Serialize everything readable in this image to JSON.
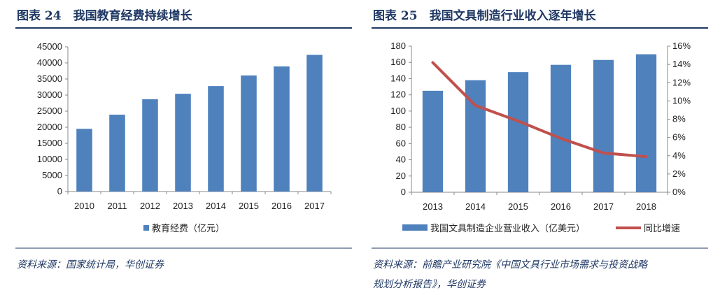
{
  "chart_data": [
    {
      "type": "bar",
      "title": "图表 24　我国教育经费持续增长",
      "categories": [
        "2010",
        "2011",
        "2012",
        "2013",
        "2014",
        "2015",
        "2016",
        "2017"
      ],
      "series": [
        {
          "name": "教育经费（亿元）",
          "values": [
            19500,
            23900,
            28700,
            30400,
            32800,
            36100,
            38900,
            42500
          ],
          "color": "#4f81bd"
        }
      ],
      "ylim": [
        0,
        45000
      ],
      "yticks": [
        "0",
        "5000",
        "10000",
        "15000",
        "20000",
        "25000",
        "30000",
        "35000",
        "40000",
        "45000"
      ],
      "grid": false,
      "legend": "bottom",
      "source": "资料来源：国家统计局，华创证券"
    },
    {
      "type": "bar+line",
      "title": "图表 25　我国文具制造行业收入逐年增长",
      "categories": [
        "2013",
        "2014",
        "2015",
        "2016",
        "2017",
        "2018"
      ],
      "series": [
        {
          "name": "我国文具制造企业营业收入（亿美元）",
          "type": "bar",
          "axis": "left",
          "values": [
            125,
            138,
            148,
            157,
            163,
            170
          ],
          "color": "#4f81bd"
        },
        {
          "name": "同比增速",
          "type": "line",
          "axis": "right",
          "values": [
            14.2,
            9.5,
            7.8,
            5.9,
            4.3,
            3.9
          ],
          "color": "#c0504d"
        }
      ],
      "ylim": [
        0,
        180
      ],
      "yticks": [
        "0",
        "20",
        "40",
        "60",
        "80",
        "100",
        "120",
        "140",
        "160",
        "180"
      ],
      "y2lim": [
        0,
        16
      ],
      "y2ticks": [
        "0%",
        "2%",
        "4%",
        "6%",
        "8%",
        "10%",
        "12%",
        "14%",
        "16%"
      ],
      "grid": false,
      "legend": "bottom",
      "source_lines": [
        "资料来源：前瞻产业研究院《中国文具行业市场需求与投资战略",
        "规划分析报告》，华创证券"
      ]
    }
  ]
}
